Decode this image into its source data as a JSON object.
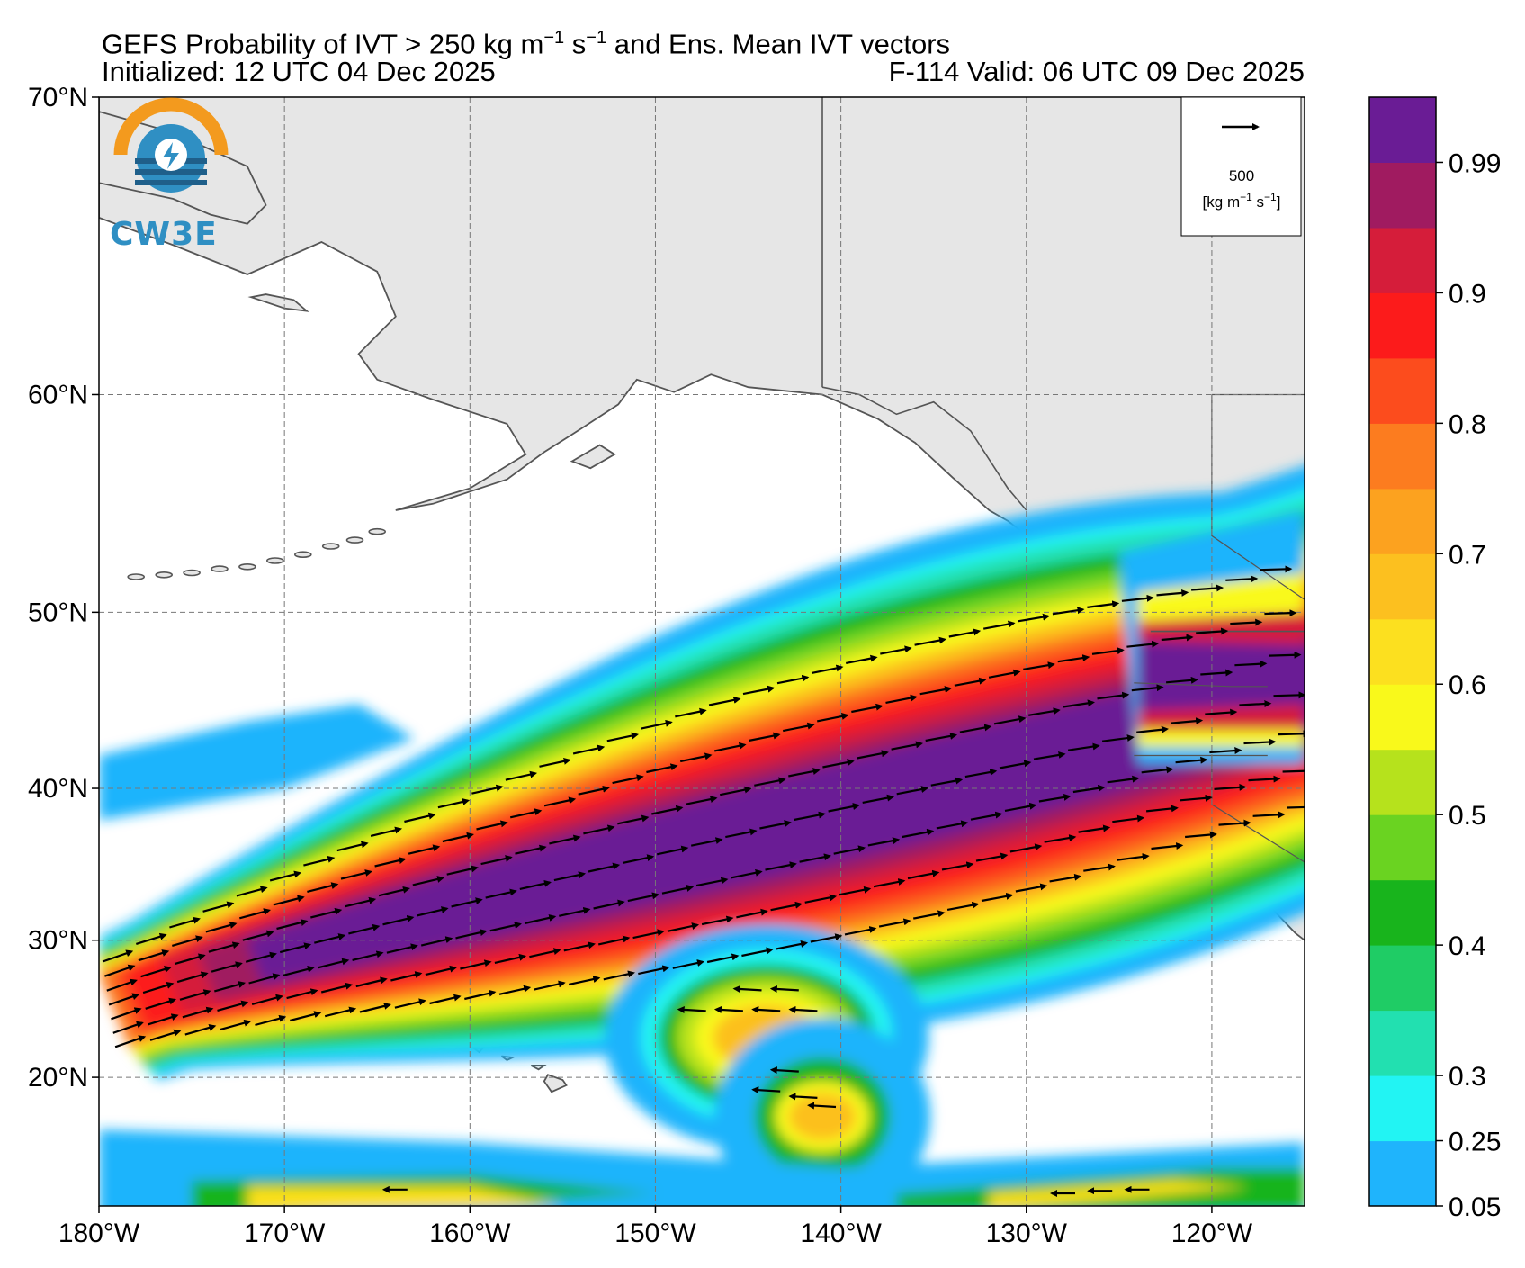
{
  "header": {
    "title_main": "GEFS Probability of IVT > 250 kg m",
    "title_exp1": "−1",
    "title_mid": " s",
    "title_exp2": "−1",
    "title_tail": " and Ens. Mean IVT vectors",
    "initialized": "Initialized: 12 UTC 04 Dec 2025",
    "valid": "F-114  Valid: 06 UTC 09 Dec 2025"
  },
  "logo": {
    "text": "CW3E",
    "colors": {
      "ring": "#f39a1e",
      "blue": "#2f8fc3",
      "dark": "#1f5f8a"
    }
  },
  "vector_key": {
    "value": "500",
    "units_pre": "[kg m",
    "units_e1": "−1",
    "units_mid": " s",
    "units_e2": "−1",
    "units_post": "]"
  },
  "map": {
    "lon_range": [
      -180,
      -115
    ],
    "lat_range": [
      10,
      70
    ],
    "lat_labels": [
      "70°N",
      "60°N",
      "50°N",
      "40°N",
      "30°N",
      "20°N"
    ],
    "lon_labels": [
      "180°W",
      "170°W",
      "160°W",
      "150°W",
      "140°W",
      "130°W",
      "120°W"
    ],
    "land_color": "#e6e6e6",
    "coast_color": "#555555"
  },
  "colorbar": {
    "labels": [
      "0.05",
      "0.25",
      "0.3",
      "0.4",
      "0.5",
      "0.6",
      "0.7",
      "0.8",
      "0.9",
      "0.99"
    ],
    "colors": [
      "#1fb4fc",
      "#22f4f3",
      "#22e0b0",
      "#1fcc65",
      "#18b41c",
      "#6ad321",
      "#b6e21c",
      "#f9f91b",
      "#fce01f",
      "#fcc01f",
      "#fca21f",
      "#fc7c1f",
      "#fc4c1d",
      "#fc1b1b",
      "#d51d3a",
      "#a01b60",
      "#6a1c95"
    ]
  },
  "chart_data": {
    "type": "filled-contour map with vectors",
    "title": "GEFS Probability of IVT > 250 kg m−1 s−1 and Ens. Mean IVT vectors",
    "valid": "F-114  Valid: 06 UTC 09 Dec 2025",
    "contour_levels": [
      0.05,
      0.25,
      0.3,
      0.35,
      0.4,
      0.45,
      0.5,
      0.55,
      0.6,
      0.65,
      0.7,
      0.75,
      0.8,
      0.85,
      0.9,
      0.95,
      0.99
    ],
    "features": [
      {
        "name": "atmospheric river core",
        "from": [
          -177,
          25
        ],
        "to": [
          -118,
          46
        ],
        "max_probability": 1.0
      },
      {
        "name": "subtropical blob",
        "center": [
          -143,
          23
        ],
        "max_probability": 0.65
      },
      {
        "name": "tropical band",
        "center": [
          -130,
          11
        ],
        "max_probability": 0.7
      }
    ]
  }
}
